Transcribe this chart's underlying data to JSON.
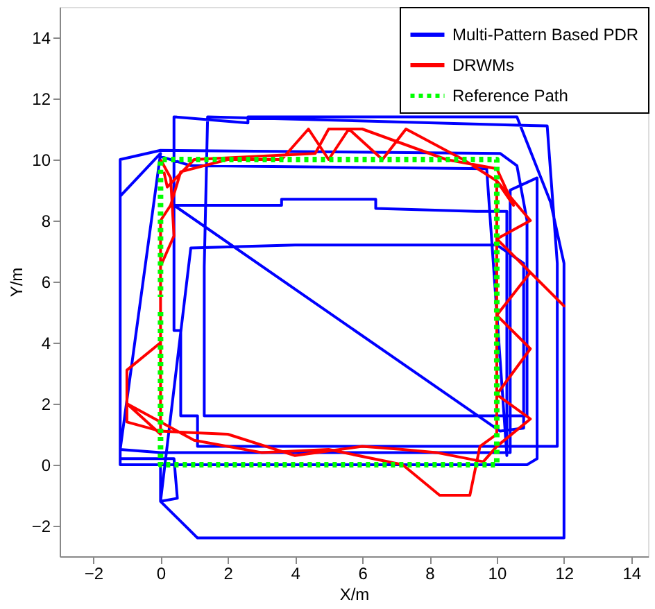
{
  "chart_data": {
    "type": "line",
    "xlabel": "X/m",
    "ylabel": "Y/m",
    "xlim": [
      -3,
      14.5
    ],
    "ylim": [
      -3,
      15
    ],
    "xticks": [
      -2,
      0,
      2,
      4,
      6,
      8,
      10,
      12,
      14
    ],
    "yticks": [
      -2,
      0,
      2,
      4,
      6,
      8,
      10,
      12,
      14
    ],
    "grid": false,
    "legend": "top right",
    "marker": "none",
    "series": [
      {
        "name": "Multi-Pattern Based PDR",
        "color": "#0000ff",
        "line_style": "solid",
        "x": [
          0,
          0,
          1.1,
          12,
          12,
          11.6,
          10.6,
          2.6,
          2.6,
          0.4,
          0.4,
          0.6,
          0.6,
          1.1,
          1.1,
          11.8,
          11.8,
          11.5,
          1.4,
          1.3,
          1.3,
          10.9,
          10.9,
          10.6,
          10.1,
          0,
          -1.2,
          -1.2,
          10.9,
          11.2,
          11.2,
          10.4,
          10.4,
          0,
          -1.2,
          0,
          -1.2,
          -1.2,
          0.4,
          0.5,
          0,
          0.9,
          4,
          10,
          10.8,
          10.8,
          10.1,
          0.4,
          3.6,
          3.6,
          6.4,
          6.4,
          9.4,
          10.3,
          10.3,
          9.7,
          0.9,
          0
        ],
        "values": [
          0,
          -1.2,
          -2.4,
          -2.4,
          6.6,
          8.6,
          11.4,
          11.4,
          11.2,
          11.4,
          4.4,
          4.4,
          1.6,
          1.6,
          0.6,
          0.6,
          6.6,
          11.1,
          11.4,
          6.5,
          1.6,
          1.6,
          8,
          9.8,
          10.2,
          10.3,
          10,
          0,
          0,
          0.2,
          9.4,
          9,
          0.4,
          0.4,
          0.5,
          10.2,
          8.8,
          0.2,
          0.2,
          -1.1,
          -1.2,
          7.1,
          7.2,
          7.2,
          6.6,
          1.2,
          1.1,
          8.5,
          8.5,
          8.7,
          8.7,
          8.4,
          8.3,
          8.3,
          0.3,
          9.7,
          9.8,
          10.1
        ]
      },
      {
        "name": "DRWMs",
        "color": "#ff0000",
        "line_style": "solid",
        "x": [
          0,
          0.3,
          0.4,
          0,
          0,
          -1,
          -1,
          0,
          2,
          4,
          6,
          7.2,
          8.2,
          9.6,
          10,
          11,
          10,
          11,
          10,
          11,
          12,
          10,
          11,
          10,
          9,
          7.3,
          6.6,
          5.6,
          5,
          4.4,
          3.6,
          2,
          0.6,
          0.3,
          0,
          0,
          -1,
          1,
          3,
          5,
          7.2,
          8.3,
          9.2,
          9.5,
          10,
          10,
          10.5,
          10,
          8.5,
          6,
          5,
          4.6,
          1,
          0.2,
          0.1
        ],
        "values": [
          10,
          9.4,
          7.5,
          6.5,
          4,
          3.1,
          1.4,
          1.1,
          1,
          0.3,
          0.6,
          0.5,
          0.4,
          0.1,
          0.6,
          1.5,
          2.3,
          3.8,
          4.9,
          6.3,
          5.2,
          7.4,
          8,
          9.3,
          10,
          11,
          10,
          11,
          10,
          11,
          10,
          10,
          9.6,
          8.5,
          8,
          1,
          2,
          0.8,
          0.4,
          0.5,
          0,
          -1,
          -1,
          0.6,
          1,
          9.3,
          8.5,
          9.7,
          10,
          11,
          11,
          10.2,
          10,
          9.1,
          9.6
        ]
      },
      {
        "name": "Reference Path",
        "color": "#00ff00",
        "line_style": "dotted",
        "x": [
          0,
          0,
          10,
          10,
          0,
          0
        ],
        "values": [
          5,
          0,
          0,
          10,
          10,
          5.5
        ]
      }
    ]
  }
}
